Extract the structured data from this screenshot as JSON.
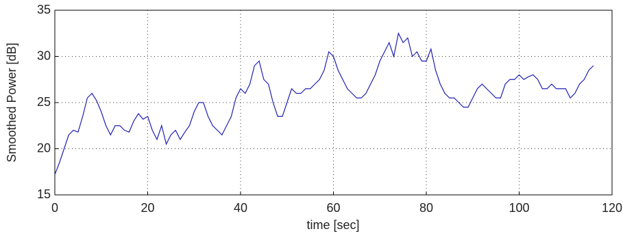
{
  "chart_data": {
    "type": "line",
    "xlabel": "time [sec]",
    "ylabel": "Smoothed Power [dB]",
    "x": [
      0,
      1,
      2,
      3,
      4,
      5,
      6,
      7,
      8,
      9,
      10,
      11,
      12,
      13,
      14,
      15,
      16,
      17,
      18,
      19,
      20,
      21,
      22,
      23,
      24,
      25,
      26,
      27,
      28,
      29,
      30,
      31,
      32,
      33,
      34,
      35,
      36,
      37,
      38,
      39,
      40,
      41,
      42,
      43,
      44,
      45,
      46,
      47,
      48,
      49,
      50,
      51,
      52,
      53,
      54,
      55,
      56,
      57,
      58,
      59,
      60,
      61,
      62,
      63,
      64,
      65,
      66,
      67,
      68,
      69,
      70,
      71,
      72,
      73,
      74,
      75,
      76,
      77,
      78,
      79,
      80,
      81,
      82,
      83,
      84,
      85,
      86,
      87,
      88,
      89,
      90,
      91,
      92,
      93,
      94,
      95,
      96,
      97,
      98,
      99,
      100,
      101,
      102,
      103,
      104,
      105,
      106,
      107,
      108,
      109,
      110,
      111,
      112,
      113,
      114,
      115,
      116
    ],
    "series": [
      {
        "color": "#1f1fb4",
        "values": [
          17.2,
          18.5,
          20,
          21.5,
          22,
          21.8,
          23.5,
          25.5,
          26,
          25.2,
          24,
          22.5,
          21.5,
          22.5,
          22.5,
          22,
          21.8,
          23,
          23.8,
          23.2,
          23.5,
          22,
          21,
          22.5,
          20.5,
          21.5,
          22,
          21,
          21.8,
          22.5,
          24,
          25,
          25,
          23.5,
          22.5,
          22,
          21.5,
          22.5,
          23.5,
          25.5,
          26.5,
          26,
          27,
          29,
          29.5,
          27.5,
          27,
          25,
          23.5,
          23.5,
          25,
          26.5,
          26,
          26,
          26.5,
          26.5,
          27,
          27.5,
          28.5,
          30.5,
          30,
          28.5,
          27.5,
          26.5,
          26,
          25.5,
          25.5,
          26,
          27,
          28,
          29.5,
          30.5,
          31.5,
          30,
          32.5,
          31.5,
          32,
          30,
          30.5,
          29.5,
          29.5,
          30.8,
          28.5,
          27,
          26,
          25.5,
          25.5,
          25,
          24.5,
          24.5,
          25.5,
          26.5,
          27,
          26.5,
          26,
          25.5,
          25.5,
          27,
          27.5,
          27.5,
          28,
          27.5,
          27.8,
          28,
          27.5,
          26.5,
          26.5,
          27,
          26.5,
          26.5,
          26.5,
          25.5,
          26,
          27,
          27.5,
          28.5,
          29
        ]
      }
    ],
    "xlim": [
      0,
      120
    ],
    "ylim": [
      15,
      35
    ],
    "xticks": [
      0,
      20,
      40,
      60,
      80,
      100,
      120
    ],
    "yticks": [
      15,
      20,
      25,
      30,
      35
    ],
    "grid": true
  }
}
